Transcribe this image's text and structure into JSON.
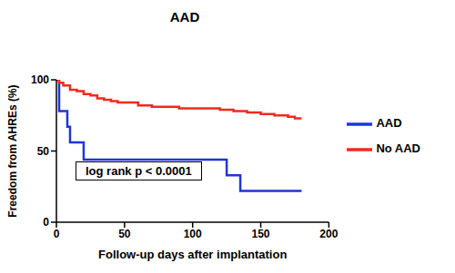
{
  "chart_data": {
    "type": "line",
    "title": "AAD",
    "x_label": "Follow-up days after implantation",
    "y_label": "Freedom from AHREs (%)",
    "annotation": "log rank p < 0.0001",
    "xlim": [
      0,
      200
    ],
    "xticks": [
      0,
      50,
      100,
      150,
      200
    ],
    "ylim": [
      0,
      100
    ],
    "yticks": [
      0,
      50,
      100
    ],
    "legend": "right",
    "grid": false,
    "line_style": "step",
    "series": [
      {
        "name": "AAD",
        "color": "#1f35d8",
        "x": [
          0,
          2,
          8,
          10,
          20,
          125,
          135,
          180
        ],
        "values": [
          100,
          78,
          67,
          56,
          44,
          33,
          22,
          22
        ]
      },
      {
        "name": "No AAD",
        "color": "#ee2a1e",
        "x": [
          0,
          2,
          5,
          10,
          15,
          20,
          25,
          30,
          35,
          40,
          45,
          60,
          70,
          90,
          120,
          130,
          140,
          150,
          160,
          170,
          175,
          180
        ],
        "values": [
          100,
          98,
          96,
          93,
          92,
          90,
          89,
          87,
          86,
          85,
          84,
          82,
          81,
          80,
          79,
          78,
          77,
          76,
          75,
          74,
          73,
          73
        ]
      }
    ]
  }
}
